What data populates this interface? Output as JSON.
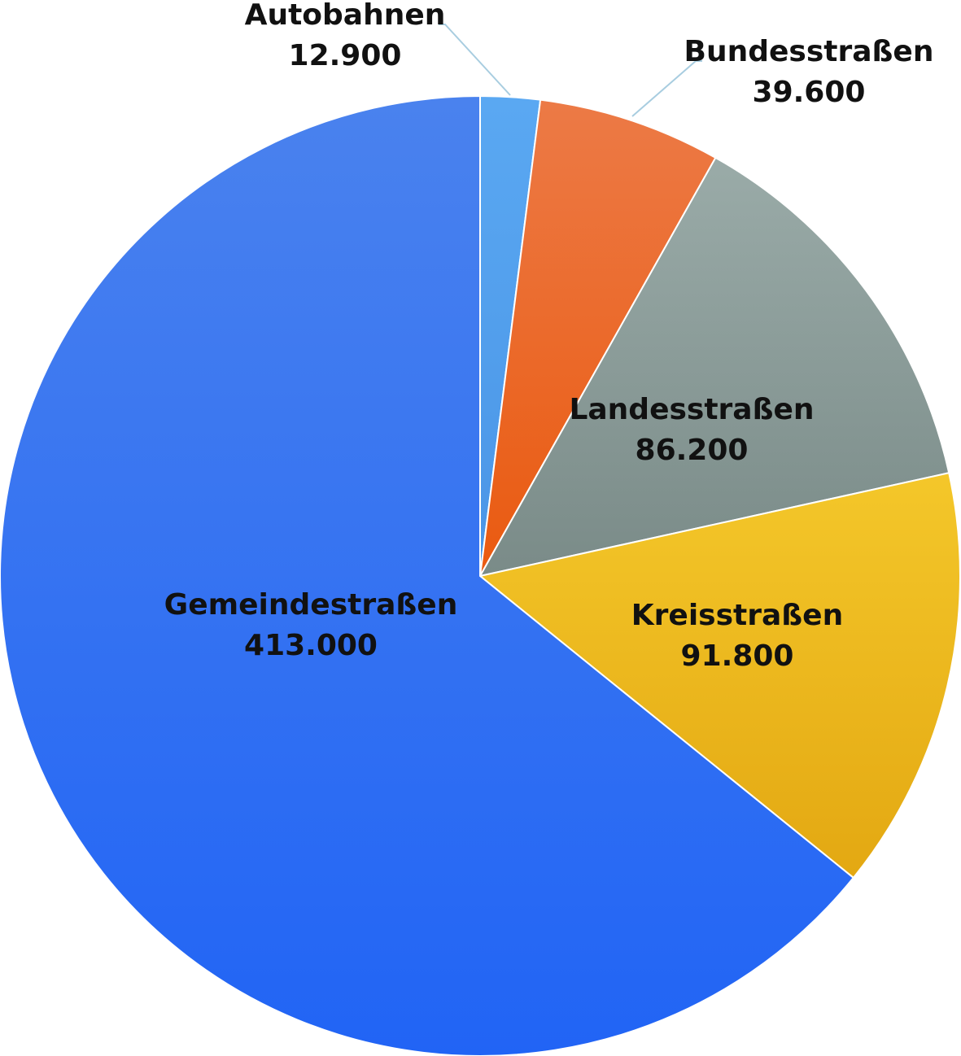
{
  "chart_data": {
    "type": "pie",
    "title": "",
    "slices": [
      {
        "label": "Autobahnen",
        "value": 12900,
        "value_label": "12.900",
        "color": "#5aa8f2",
        "color_dark": "#4a95e6",
        "label_placement": "outside"
      },
      {
        "label": "Bundesstraßen",
        "value": 39600,
        "value_label": "39.600",
        "color": "#ec7a46",
        "color_dark": "#ea5a10",
        "label_placement": "outside"
      },
      {
        "label": "Landesstraßen",
        "value": 86200,
        "value_label": "86.200",
        "color": "#9aaba8",
        "color_dark": "#7a8b88",
        "label_placement": "inside"
      },
      {
        "label": "Kreisstraßen",
        "value": 91800,
        "value_label": "91.800",
        "color": "#f4c72a",
        "color_dark": "#e3a812",
        "label_placement": "inside"
      },
      {
        "label": "Gemeindestraßen",
        "value": 413000,
        "value_label": "413.000",
        "color": "#4a82ee",
        "color_dark": "#2164f5",
        "label_placement": "inside"
      }
    ],
    "start_angle_deg": 0,
    "direction": "clockwise",
    "leader_line_color": "#a8cde0",
    "legend": "none"
  }
}
